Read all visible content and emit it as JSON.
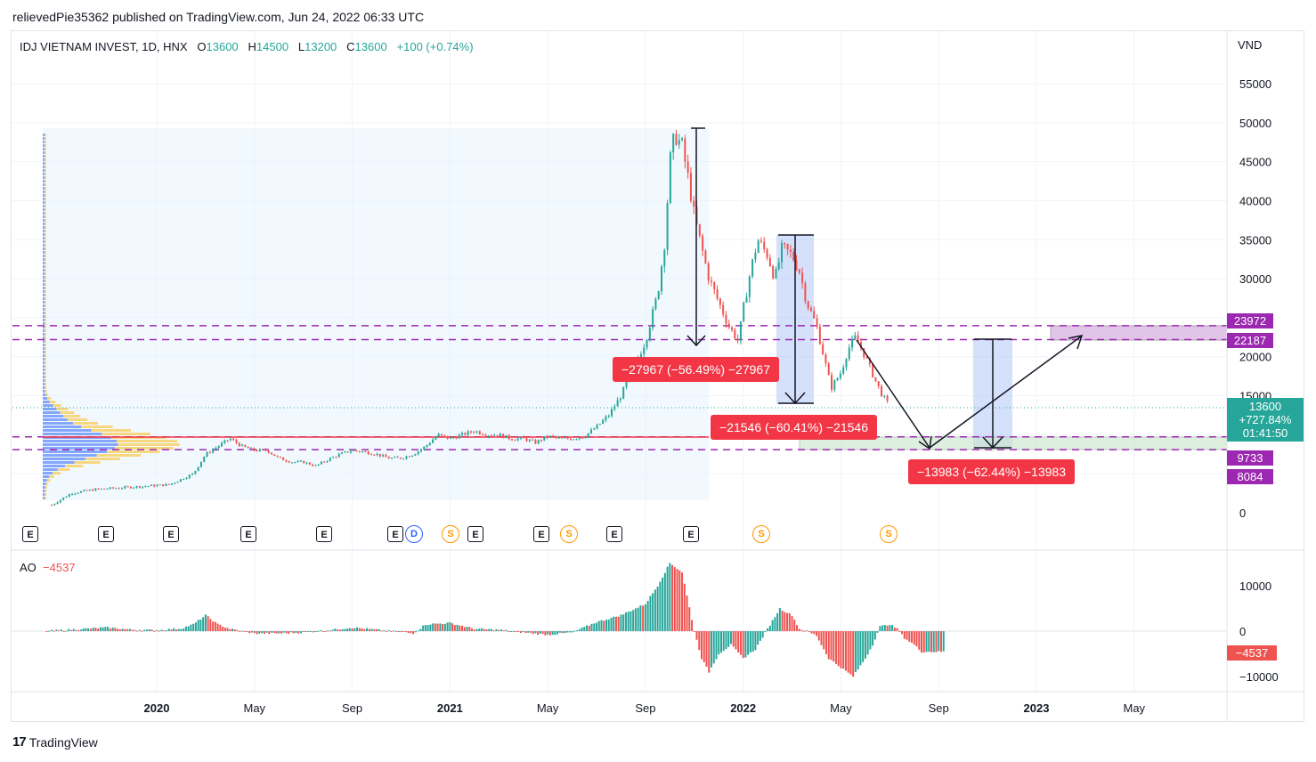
{
  "publisher": "relievedPie35362 published on TradingView.com, Jun 24, 2022 06:33 UTC",
  "legend": {
    "symbol": "IDJ VIETNAM INVEST, 1D, HNX",
    "o_label": "O",
    "o": "13600",
    "h_label": "H",
    "h": "14500",
    "l_label": "L",
    "l": "13200",
    "c_label": "C",
    "c": "13600",
    "change": "+100 (+0.74%)"
  },
  "currency": "VND",
  "ao_legend": {
    "label": "AO",
    "value": "−4537"
  },
  "footer": {
    "logo": "17",
    "brand": "TradingView"
  },
  "colors": {
    "up": "#26a69a",
    "down": "#ef5350",
    "level": "#9c27b0",
    "measure": "#f23645",
    "range": "#d1d4f8"
  },
  "price_badges": [
    {
      "label": "23972",
      "value": 23972,
      "color": "#9c27b0"
    },
    {
      "label": "22187",
      "value": 22187,
      "color": "#9c27b0"
    },
    {
      "label": "9733",
      "value": 9733,
      "color": "#9c27b0"
    },
    {
      "label": "8084",
      "value": 8084,
      "color": "#9c27b0"
    }
  ],
  "current_price": {
    "price": "13600",
    "change": "+727.84%",
    "countdown": "01:41:50"
  },
  "ao_badge": "−4537",
  "measurements": [
    {
      "label": "−27967 (−56.49%) −27967"
    },
    {
      "label": "−21546 (−60.41%) −21546"
    },
    {
      "label": "−13983 (−62.44%) −13983"
    }
  ],
  "events": [
    "E",
    "E",
    "E",
    "E",
    "E",
    "E",
    "D",
    "S",
    "E",
    "E",
    "S",
    "E",
    "E",
    "S",
    "S"
  ],
  "chart_data": [
    {
      "type": "line",
      "subtype": "candlestick",
      "title": "IDJ VIETNAM INVEST, 1D, HNX",
      "x_tick_labels": [
        "2020",
        "May",
        "Sep",
        "2021",
        "May",
        "Sep",
        "2022",
        "May",
        "Sep",
        "2023",
        "May"
      ],
      "y_tick_labels": [
        "0",
        "5000",
        "10000",
        "15000",
        "20000",
        "25000",
        "30000",
        "35000",
        "40000",
        "45000",
        "50000",
        "55000"
      ],
      "ylim": [
        -1000,
        58500
      ],
      "x_domain_months": [
        -4.5,
        37.5
      ],
      "series": [
        {
          "values_x_months": [
            -4.3,
            -3.5,
            -2.5,
            -1.5,
            -0.5,
            0.5,
            1.5,
            2.0,
            2.5,
            3.0,
            3.5,
            4.0,
            4.5,
            5.0,
            5.5,
            6.0,
            6.5,
            7.0,
            7.5,
            8.0,
            8.5,
            9.0,
            9.5,
            10.0,
            10.5,
            11.0,
            11.5,
            12.0,
            12.5,
            13.0,
            13.5,
            14.0,
            14.5,
            15.0,
            15.5,
            16.0,
            16.5,
            17.0,
            17.5,
            18.0,
            18.5,
            19.0,
            19.5,
            20.0,
            20.5,
            20.8,
            21.0,
            21.2,
            21.5,
            21.8,
            22.0,
            22.3,
            22.6,
            23.0,
            23.4,
            23.8,
            24.0,
            24.3,
            24.6,
            25.0,
            25.3,
            25.6,
            26.0,
            26.3,
            26.6,
            27.0,
            27.3,
            27.6,
            28.0,
            28.3,
            28.6,
            29.0,
            29.4,
            29.7,
            30.0,
            30.3,
            30.6,
            30.9,
            31.2,
            31.5,
            31.8,
            32.0,
            32.2,
            32.5
          ],
          "values_y": [
            1000,
            2500,
            3000,
            3200,
            3400,
            3600,
            5000,
            7500,
            8500,
            9500,
            8500,
            8000,
            8000,
            7000,
            6500,
            6500,
            6000,
            6800,
            7500,
            8000,
            7800,
            7500,
            7000,
            7000,
            7500,
            8500,
            10000,
            9500,
            10000,
            10500,
            10000,
            10000,
            9500,
            9500,
            9000,
            9800,
            9500,
            9500,
            9800,
            11000,
            12500,
            15000,
            18500,
            22000,
            28000,
            35000,
            45000,
            48500,
            47000,
            42000,
            38000,
            34000,
            30000,
            27000,
            24000,
            22000,
            26000,
            31000,
            35000,
            33000,
            30000,
            34000,
            33000,
            31000,
            27000,
            24000,
            20000,
            16000,
            18000,
            21000,
            22500,
            20000,
            17000,
            15000,
            13600,
            null,
            null,
            null,
            null,
            null,
            null,
            null,
            null,
            null
          ]
        }
      ],
      "levels": [
        23972,
        22187,
        9733,
        8084
      ]
    },
    {
      "type": "bar",
      "title": "AO",
      "ylim": [
        -12000,
        17000
      ],
      "y_tick_labels": [
        "−10000",
        "0",
        "10000"
      ],
      "series": [
        {
          "name": "AO",
          "values_x_months": [
            -4.5,
            -3,
            -2,
            -1,
            0,
            1,
            1.5,
            2,
            2.5,
            3,
            4,
            5,
            6,
            7,
            8,
            9,
            10,
            10.5,
            11,
            12,
            13,
            14,
            15,
            16,
            17,
            18,
            19,
            20,
            20.5,
            21,
            21.5,
            22,
            22.3,
            22.6,
            23,
            23.5,
            24,
            24.5,
            25,
            25.5,
            26,
            26.3,
            26.6,
            27,
            27.5,
            28,
            28.5,
            29,
            29.3,
            29.6,
            30,
            30.3,
            30.6,
            31,
            31.3,
            31.6,
            32,
            32.3,
            32.5
          ],
          "values": [
            0,
            500,
            800,
            300,
            200,
            600,
            1500,
            3500,
            1500,
            500,
            -500,
            -500,
            -300,
            200,
            800,
            300,
            -200,
            -500,
            1500,
            1800,
            500,
            300,
            -300,
            -800,
            -300,
            2000,
            3500,
            6000,
            10000,
            15000,
            13000,
            0,
            -6000,
            -9000,
            -5000,
            -3000,
            -6000,
            -4000,
            500,
            5000,
            3500,
            500,
            0,
            -1000,
            -6000,
            -8000,
            -10000,
            -6000,
            -3000,
            1000,
            1500,
            500,
            -1500,
            -3000,
            -4537,
            -4537,
            -4537,
            -4537,
            -4537
          ]
        }
      ]
    }
  ]
}
